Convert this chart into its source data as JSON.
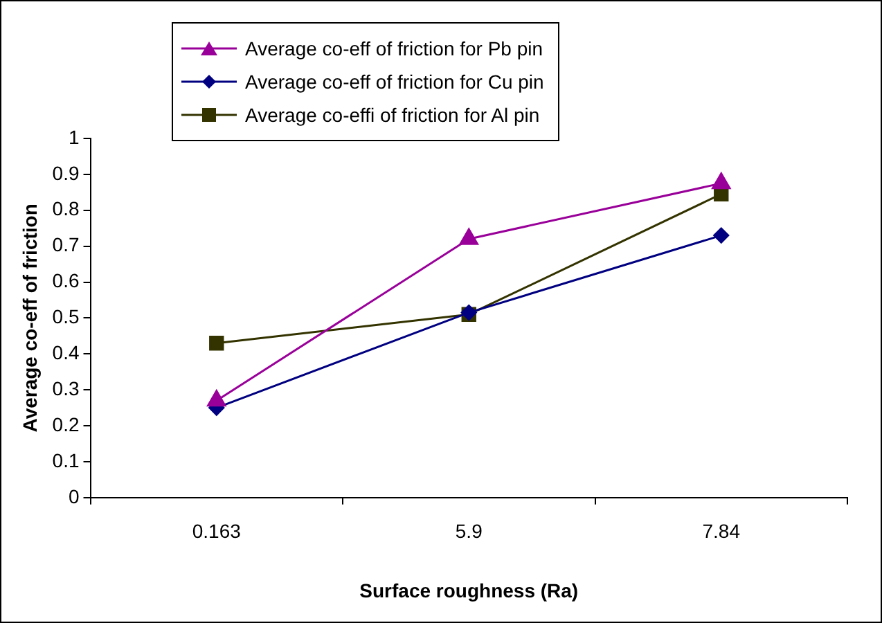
{
  "chart_data": {
    "type": "line",
    "xlabel": "Surface roughness (Ra)",
    "ylabel": "Average co-eff of friction",
    "categories": [
      "0.163",
      "5.9",
      "7.84"
    ],
    "series": [
      {
        "name": "Average co-eff of friction for Pb pin",
        "color": "#990099",
        "marker": "triangle",
        "values": [
          0.27,
          0.72,
          0.875
        ]
      },
      {
        "name": "Average co-eff of friction for Cu pin",
        "color": "#000080",
        "marker": "diamond",
        "values": [
          0.25,
          0.515,
          0.73
        ]
      },
      {
        "name": "Average co-effi of friction for Al pin",
        "color": "#333300",
        "marker": "square",
        "values": [
          0.43,
          0.51,
          0.845
        ]
      }
    ],
    "ylim": [
      0,
      1
    ],
    "yticks": [
      0,
      0.1,
      0.2,
      0.3,
      0.4,
      0.5,
      0.6,
      0.7,
      0.8,
      0.9,
      1
    ],
    "grid": false,
    "legend": "top",
    "line_style": "solid"
  }
}
